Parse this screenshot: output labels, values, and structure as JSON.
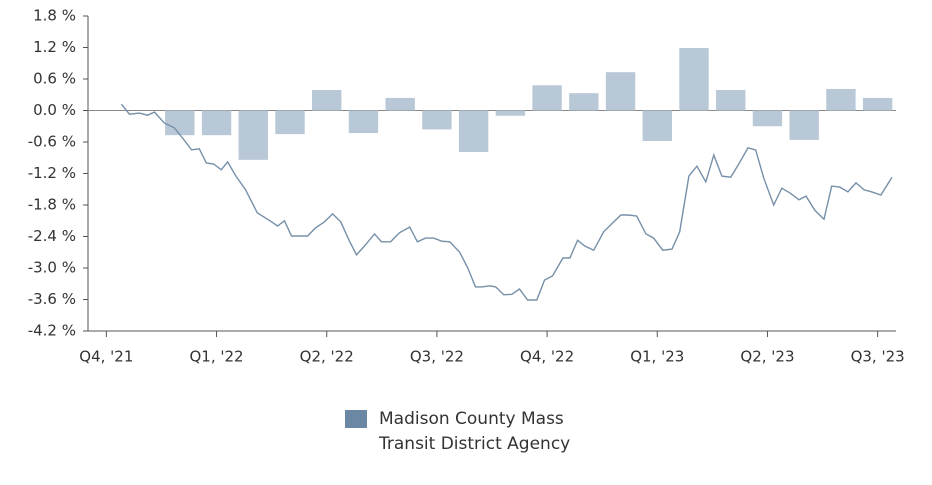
{
  "chart_data": {
    "type": "combo",
    "xlim": [
      -0.5,
      21.5
    ],
    "xticks": [
      {
        "value": 0,
        "label": "Q4, '21"
      },
      {
        "value": 3,
        "label": "Q1, '22"
      },
      {
        "value": 6,
        "label": "Q2, '22"
      },
      {
        "value": 9,
        "label": "Q3, '22"
      },
      {
        "value": 12,
        "label": "Q4, '22"
      },
      {
        "value": 15,
        "label": "Q1, '23"
      },
      {
        "value": 18,
        "label": "Q2, '23"
      },
      {
        "value": 21,
        "label": "Q3, '23"
      }
    ],
    "ylim": [
      -4.2,
      1.8
    ],
    "yticks": [
      {
        "value": 1.8,
        "label": "1.8 %"
      },
      {
        "value": 1.2,
        "label": "1.2 %"
      },
      {
        "value": 0.6,
        "label": "0.6 %"
      },
      {
        "value": 0.0,
        "label": "0.0 %"
      },
      {
        "value": -0.6,
        "label": "-0.6 %"
      },
      {
        "value": -1.2,
        "label": "-1.2 %"
      },
      {
        "value": -1.8,
        "label": "-1.8 %"
      },
      {
        "value": -2.4,
        "label": "-2.4 %"
      },
      {
        "value": -3.0,
        "label": "-3.0 %"
      },
      {
        "value": -3.6,
        "label": "-3.6 %"
      },
      {
        "value": -4.2,
        "label": "-4.2 %"
      }
    ],
    "series": [
      {
        "type": "bar",
        "color": "#b9c8d6",
        "x": [
          2,
          3,
          4,
          5,
          6,
          7,
          8,
          9,
          10,
          11,
          12,
          13,
          14,
          15,
          16,
          17,
          18,
          19,
          20,
          21
        ],
        "values": [
          -0.47,
          -0.47,
          -0.94,
          -0.45,
          0.39,
          -0.43,
          0.24,
          -0.36,
          -0.79,
          -0.1,
          0.48,
          0.33,
          0.73,
          -0.58,
          1.19,
          0.39,
          -0.3,
          -0.56,
          0.41,
          0.24
        ]
      },
      {
        "type": "line",
        "name": "Madison County Mass Transit District Agency",
        "color": "#7690a9",
        "legend_color": "#6a87a3",
        "x": [
          0.41,
          0.63,
          0.9,
          1.12,
          1.31,
          1.58,
          1.85,
          2.07,
          2.32,
          2.53,
          2.72,
          2.92,
          3.13,
          3.3,
          3.51,
          3.79,
          4.11,
          4.5,
          4.66,
          4.85,
          5.04,
          5.26,
          5.48,
          5.69,
          5.94,
          6.16,
          6.38,
          6.62,
          6.81,
          7.03,
          7.3,
          7.49,
          7.74,
          7.98,
          8.26,
          8.47,
          8.69,
          8.91,
          9.13,
          9.35,
          9.62,
          9.84,
          10.05,
          10.22,
          10.44,
          10.6,
          10.82,
          11.04,
          11.25,
          11.47,
          11.72,
          11.93,
          12.15,
          12.43,
          12.62,
          12.83,
          13.02,
          13.27,
          13.54,
          13.76,
          14.01,
          14.2,
          14.44,
          14.69,
          14.9,
          15.15,
          15.4,
          15.61,
          15.86,
          16.08,
          16.32,
          16.54,
          16.76,
          17.0,
          17.22,
          17.47,
          17.68,
          17.9,
          18.17,
          18.39,
          18.61,
          18.86,
          19.05,
          19.29,
          19.54,
          19.75,
          19.97,
          20.19,
          20.41,
          20.63,
          20.84,
          21.09,
          21.39
        ],
        "values": [
          0.12,
          -0.07,
          -0.05,
          -0.09,
          -0.03,
          -0.24,
          -0.33,
          -0.52,
          -0.75,
          -0.73,
          -1.0,
          -1.02,
          -1.13,
          -0.98,
          -1.23,
          -1.51,
          -1.95,
          -2.12,
          -2.2,
          -2.1,
          -2.39,
          -2.39,
          -2.39,
          -2.24,
          -2.12,
          -1.97,
          -2.12,
          -2.49,
          -2.75,
          -2.58,
          -2.35,
          -2.5,
          -2.5,
          -2.33,
          -2.22,
          -2.5,
          -2.43,
          -2.43,
          -2.49,
          -2.5,
          -2.7,
          -3.0,
          -3.36,
          -3.36,
          -3.34,
          -3.36,
          -3.51,
          -3.5,
          -3.4,
          -3.61,
          -3.61,
          -3.23,
          -3.15,
          -2.81,
          -2.81,
          -2.47,
          -2.58,
          -2.66,
          -2.31,
          -2.16,
          -1.99,
          -1.99,
          -2.01,
          -2.35,
          -2.43,
          -2.66,
          -2.64,
          -2.31,
          -1.25,
          -1.06,
          -1.36,
          -0.85,
          -1.25,
          -1.27,
          -1.02,
          -0.71,
          -0.75,
          -1.29,
          -1.8,
          -1.48,
          -1.57,
          -1.7,
          -1.63,
          -1.9,
          -2.07,
          -1.44,
          -1.46,
          -1.55,
          -1.38,
          -1.51,
          -1.55,
          -1.61,
          -1.27
        ]
      }
    ]
  }
}
